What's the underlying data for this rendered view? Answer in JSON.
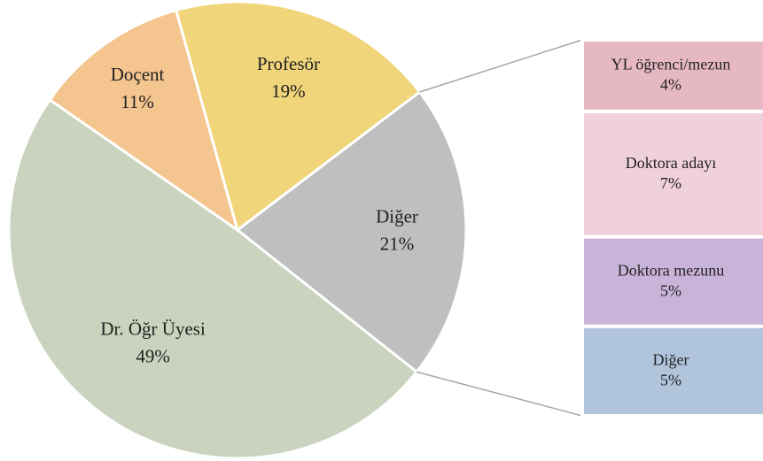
{
  "chart_data": {
    "type": "pie-of-bar",
    "categories": [
      "Profesör",
      "Diğer",
      "Dr. Öğr Üyesi",
      "Doçent"
    ],
    "values": [
      19,
      21,
      49,
      11
    ],
    "value_labels": [
      "19%",
      "21%",
      "49%",
      "11%"
    ],
    "colors": [
      "#f0d57a",
      "#bfbfbf",
      "#c9d3bd",
      "#f5c590"
    ],
    "breakdown": {
      "categories": [
        "YL öğrenci/mezun",
        "Doktora adayı",
        "Doktora mezunu",
        "Diğer"
      ],
      "values": [
        4,
        7,
        5,
        5
      ],
      "value_labels": [
        "4%",
        "7%",
        "5%",
        "5%"
      ],
      "colors": [
        "#e6b8c4",
        "#f0d0d9",
        "#c9b3d9",
        "#b0c4dc"
      ]
    }
  }
}
